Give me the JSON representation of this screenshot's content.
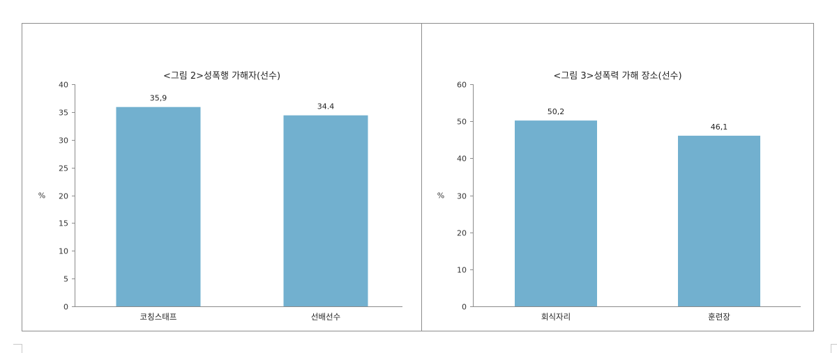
{
  "chart_data": [
    {
      "type": "bar",
      "title": "<그림 2>성폭행 가해자(선수)",
      "ylabel": "%",
      "categories": [
        "코칭스태프",
        "선배선수"
      ],
      "values": [
        35.9,
        34.4
      ],
      "value_labels": [
        "35,9",
        "34.4"
      ],
      "ylim": [
        0,
        40
      ],
      "yticks": [
        0,
        5,
        10,
        15,
        20,
        25,
        30,
        35,
        40
      ],
      "bar_color": "#72b0cf",
      "grid": false
    },
    {
      "type": "bar",
      "title": "<그림 3>성폭력 가해 장소(선수)",
      "ylabel": "%",
      "categories": [
        "회식자리",
        "훈련장"
      ],
      "values": [
        50.2,
        46.1
      ],
      "value_labels": [
        "50,2",
        "46,1"
      ],
      "ylim": [
        0,
        60
      ],
      "yticks": [
        0,
        10,
        20,
        30,
        40,
        50,
        60
      ],
      "bar_color": "#72b0cf",
      "grid": false
    }
  ]
}
